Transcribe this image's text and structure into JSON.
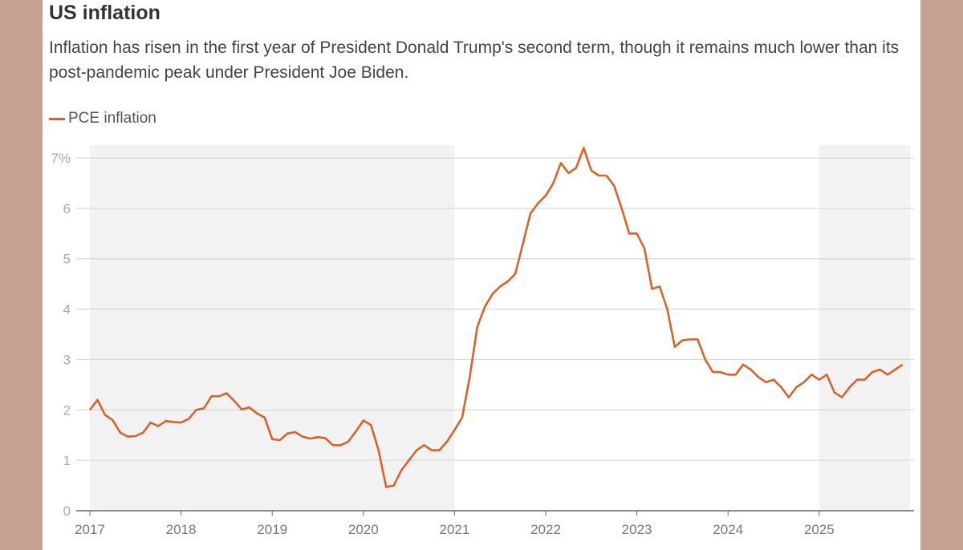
{
  "chart_data": {
    "type": "line",
    "title": "US inflation",
    "subtitle": "Inflation has risen in the first year of President Donald Trump's second term, though it remains much lower than its post-pandemic peak under President Joe Biden.",
    "xlabel": "",
    "ylabel": "",
    "ylim": [
      0,
      7
    ],
    "yticks": [
      "0",
      "1",
      "2",
      "3",
      "4",
      "5",
      "6",
      "7%"
    ],
    "xticks": [
      "2017",
      "2018",
      "2019",
      "2020",
      "2021",
      "2022",
      "2023",
      "2024",
      "2025"
    ],
    "grid": true,
    "legend": "top-left",
    "shaded_periods": [
      [
        "2017-01",
        "2021-01"
      ],
      [
        "2025-01",
        "2026-01"
      ]
    ],
    "colors": {
      "line": "#d9622b",
      "shade": "#f2f2f2",
      "grid": "#d9d9d9",
      "axis": "#666666"
    },
    "series": [
      {
        "name": "PCE inflation",
        "start": "2017-01",
        "frequency": "monthly",
        "values": [
          2.0,
          2.2,
          1.9,
          1.8,
          1.55,
          1.47,
          1.48,
          1.55,
          1.75,
          1.68,
          1.78,
          1.76,
          1.75,
          1.82,
          2.0,
          2.03,
          2.27,
          2.27,
          2.33,
          2.18,
          2.01,
          2.05,
          1.93,
          1.85,
          1.42,
          1.4,
          1.53,
          1.56,
          1.47,
          1.43,
          1.46,
          1.44,
          1.3,
          1.3,
          1.37,
          1.57,
          1.79,
          1.7,
          1.2,
          0.47,
          0.5,
          0.8,
          1.0,
          1.2,
          1.3,
          1.2,
          1.2,
          1.37,
          1.6,
          1.85,
          2.65,
          3.65,
          4.05,
          4.3,
          4.45,
          4.55,
          4.7,
          5.3,
          5.9,
          6.1,
          6.25,
          6.5,
          6.9,
          6.7,
          6.8,
          7.2,
          6.75,
          6.65,
          6.65,
          6.45,
          6.0,
          5.5,
          5.5,
          5.2,
          4.4,
          4.45,
          4.0,
          3.25,
          3.38,
          3.4,
          3.4,
          3.0,
          2.75,
          2.75,
          2.7,
          2.7,
          2.9,
          2.8,
          2.65,
          2.55,
          2.6,
          2.45,
          2.25,
          2.45,
          2.55,
          2.7,
          2.6,
          2.7,
          2.35,
          2.25,
          2.45,
          2.6,
          2.6,
          2.75,
          2.8,
          2.7,
          2.8,
          2.9
        ]
      }
    ]
  }
}
